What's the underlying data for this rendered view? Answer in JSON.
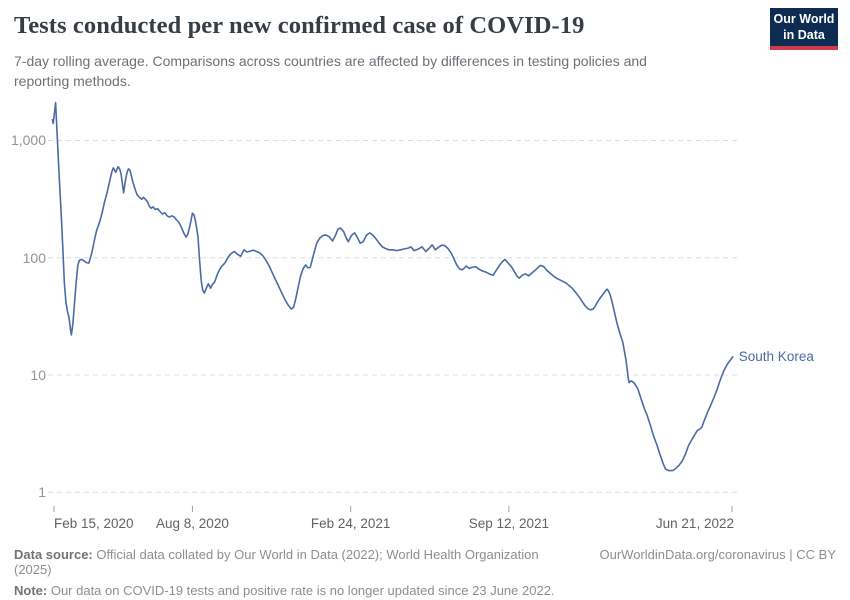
{
  "header": {
    "title": "Tests conducted per new confirmed case of COVID-19",
    "subtitle": "7-day rolling average. Comparisons across countries are affected by differences in testing policies and reporting methods.",
    "logo_line1": "Our World",
    "logo_line2": "in Data"
  },
  "colors": {
    "brand_navy": "#0e2c52",
    "brand_red": "#d13b4b",
    "series_blue": "#4a6ba3",
    "gridline": "#dbdddf",
    "tick": "#9ca1a4"
  },
  "chart_data": {
    "type": "line",
    "title": "Tests conducted per new confirmed case of COVID-19",
    "y_axis": {
      "scale": "log",
      "range": [
        1,
        2500
      ],
      "gridlines": "dashed",
      "ticks": [
        {
          "value": 1000,
          "label": "1,000"
        },
        {
          "value": 100,
          "label": "100"
        },
        {
          "value": 10,
          "label": "10"
        },
        {
          "value": 1,
          "label": "1"
        }
      ]
    },
    "x_axis": {
      "range": [
        "2020-02-13",
        "2022-06-23"
      ],
      "ticks": [
        {
          "date": "2020-02-15",
          "label": "Feb 15, 2020",
          "align": "left"
        },
        {
          "date": "2020-08-08",
          "label": "Aug 8, 2020",
          "align": "center"
        },
        {
          "date": "2021-02-24",
          "label": "Feb 24, 2021",
          "align": "center"
        },
        {
          "date": "2021-09-12",
          "label": "Sep 12, 2021",
          "align": "center"
        },
        {
          "date": "2022-06-21",
          "label": "Jun 21, 2022",
          "align": "right"
        }
      ]
    },
    "series": [
      {
        "name": "South Korea",
        "color": "#4a6ba3",
        "points": [
          [
            "2020-02-13",
            1500
          ],
          [
            "2020-02-14",
            1400
          ],
          [
            "2020-02-17",
            2100
          ],
          [
            "2020-02-20",
            800
          ],
          [
            "2020-02-22",
            440
          ],
          [
            "2020-02-24",
            245
          ],
          [
            "2020-02-26",
            128
          ],
          [
            "2020-02-28",
            62
          ],
          [
            "2020-03-01",
            42
          ],
          [
            "2020-03-03",
            35
          ],
          [
            "2020-03-05",
            31
          ],
          [
            "2020-03-07",
            24
          ],
          [
            "2020-03-08",
            22
          ],
          [
            "2020-03-10",
            28
          ],
          [
            "2020-03-12",
            42
          ],
          [
            "2020-03-14",
            62
          ],
          [
            "2020-03-16",
            85
          ],
          [
            "2020-03-18",
            95
          ],
          [
            "2020-03-21",
            97
          ],
          [
            "2020-03-24",
            94
          ],
          [
            "2020-03-27",
            91
          ],
          [
            "2020-03-30",
            90
          ],
          [
            "2020-04-01",
            100
          ],
          [
            "2020-04-03",
            112
          ],
          [
            "2020-04-06",
            140
          ],
          [
            "2020-04-09",
            172
          ],
          [
            "2020-04-13",
            205
          ],
          [
            "2020-04-16",
            245
          ],
          [
            "2020-04-19",
            300
          ],
          [
            "2020-04-22",
            357
          ],
          [
            "2020-04-25",
            440
          ],
          [
            "2020-04-28",
            540
          ],
          [
            "2020-04-30",
            584
          ],
          [
            "2020-05-03",
            535
          ],
          [
            "2020-05-06",
            598
          ],
          [
            "2020-05-08",
            570
          ],
          [
            "2020-05-10",
            510
          ],
          [
            "2020-05-13",
            358
          ],
          [
            "2020-05-15",
            443
          ],
          [
            "2020-05-17",
            525
          ],
          [
            "2020-05-19",
            572
          ],
          [
            "2020-05-21",
            560
          ],
          [
            "2020-05-23",
            495
          ],
          [
            "2020-05-25",
            437
          ],
          [
            "2020-05-28",
            375
          ],
          [
            "2020-05-30",
            345
          ],
          [
            "2020-06-02",
            327
          ],
          [
            "2020-06-05",
            315
          ],
          [
            "2020-06-07",
            327
          ],
          [
            "2020-06-09",
            318
          ],
          [
            "2020-06-12",
            300
          ],
          [
            "2020-06-15",
            272
          ],
          [
            "2020-06-17",
            264
          ],
          [
            "2020-06-19",
            272
          ],
          [
            "2020-06-22",
            258
          ],
          [
            "2020-06-25",
            262
          ],
          [
            "2020-06-28",
            248
          ],
          [
            "2020-07-01",
            236
          ],
          [
            "2020-07-04",
            242
          ],
          [
            "2020-07-07",
            228
          ],
          [
            "2020-07-10",
            222
          ],
          [
            "2020-07-13",
            228
          ],
          [
            "2020-07-16",
            222
          ],
          [
            "2020-07-19",
            210
          ],
          [
            "2020-07-22",
            200
          ],
          [
            "2020-07-25",
            182
          ],
          [
            "2020-07-28",
            163
          ],
          [
            "2020-07-31",
            150
          ],
          [
            "2020-08-02",
            158
          ],
          [
            "2020-08-05",
            190
          ],
          [
            "2020-08-08",
            240
          ],
          [
            "2020-08-10",
            232
          ],
          [
            "2020-08-12",
            203
          ],
          [
            "2020-08-15",
            151
          ],
          [
            "2020-08-17",
            95
          ],
          [
            "2020-08-19",
            64
          ],
          [
            "2020-08-21",
            53
          ],
          [
            "2020-08-23",
            50
          ],
          [
            "2020-08-26",
            56
          ],
          [
            "2020-08-28",
            60
          ],
          [
            "2020-08-31",
            55
          ],
          [
            "2020-09-02",
            59
          ],
          [
            "2020-09-05",
            62
          ],
          [
            "2020-09-09",
            74
          ],
          [
            "2020-09-13",
            83
          ],
          [
            "2020-09-18",
            90
          ],
          [
            "2020-09-22",
            101
          ],
          [
            "2020-09-26",
            109
          ],
          [
            "2020-09-30",
            113
          ],
          [
            "2020-10-04",
            107
          ],
          [
            "2020-10-08",
            103
          ],
          [
            "2020-10-12",
            117
          ],
          [
            "2020-10-16",
            112
          ],
          [
            "2020-10-20",
            114
          ],
          [
            "2020-10-24",
            116
          ],
          [
            "2020-10-28",
            113
          ],
          [
            "2020-11-01",
            110
          ],
          [
            "2020-11-05",
            104
          ],
          [
            "2020-11-09",
            95
          ],
          [
            "2020-11-13",
            85
          ],
          [
            "2020-11-17",
            74
          ],
          [
            "2020-11-21",
            65
          ],
          [
            "2020-11-25",
            57
          ],
          [
            "2020-11-29",
            50
          ],
          [
            "2020-12-03",
            44
          ],
          [
            "2020-12-07",
            39.5
          ],
          [
            "2020-12-11",
            36.5
          ],
          [
            "2020-12-14",
            38
          ],
          [
            "2020-12-17",
            46
          ],
          [
            "2020-12-20",
            58
          ],
          [
            "2020-12-23",
            71
          ],
          [
            "2020-12-26",
            81
          ],
          [
            "2020-12-29",
            87
          ],
          [
            "2021-01-01",
            82
          ],
          [
            "2021-01-04",
            83
          ],
          [
            "2021-01-08",
            106
          ],
          [
            "2021-01-12",
            133
          ],
          [
            "2021-01-16",
            147
          ],
          [
            "2021-01-20",
            155
          ],
          [
            "2021-01-24",
            156
          ],
          [
            "2021-01-28",
            151
          ],
          [
            "2021-02-01",
            139
          ],
          [
            "2021-02-05",
            156
          ],
          [
            "2021-02-08",
            176
          ],
          [
            "2021-02-11",
            179
          ],
          [
            "2021-02-15",
            167
          ],
          [
            "2021-02-18",
            150
          ],
          [
            "2021-02-21",
            137
          ],
          [
            "2021-02-25",
            155
          ],
          [
            "2021-03-01",
            163
          ],
          [
            "2021-03-04",
            151
          ],
          [
            "2021-03-08",
            133
          ],
          [
            "2021-03-12",
            137
          ],
          [
            "2021-03-16",
            156
          ],
          [
            "2021-03-20",
            163
          ],
          [
            "2021-03-24",
            156
          ],
          [
            "2021-03-28",
            145
          ],
          [
            "2021-04-01",
            133
          ],
          [
            "2021-04-05",
            124
          ],
          [
            "2021-04-09",
            120
          ],
          [
            "2021-04-13",
            117
          ],
          [
            "2021-04-18",
            117
          ],
          [
            "2021-04-23",
            115
          ],
          [
            "2021-04-28",
            117
          ],
          [
            "2021-05-03",
            119
          ],
          [
            "2021-05-08",
            121
          ],
          [
            "2021-05-11",
            124
          ],
          [
            "2021-05-15",
            115
          ],
          [
            "2021-05-20",
            118
          ],
          [
            "2021-05-25",
            124
          ],
          [
            "2021-05-30",
            113
          ],
          [
            "2021-06-03",
            120
          ],
          [
            "2021-06-07",
            129
          ],
          [
            "2021-06-11",
            117
          ],
          [
            "2021-06-15",
            123
          ],
          [
            "2021-06-19",
            128
          ],
          [
            "2021-06-23",
            127
          ],
          [
            "2021-06-27",
            120
          ],
          [
            "2021-07-01",
            110
          ],
          [
            "2021-07-04",
            100
          ],
          [
            "2021-07-08",
            87
          ],
          [
            "2021-07-12",
            80
          ],
          [
            "2021-07-15",
            79
          ],
          [
            "2021-07-18",
            82
          ],
          [
            "2021-07-20",
            85
          ],
          [
            "2021-07-24",
            81
          ],
          [
            "2021-07-28",
            83
          ],
          [
            "2021-08-01",
            84
          ],
          [
            "2021-08-05",
            80
          ],
          [
            "2021-08-10",
            77
          ],
          [
            "2021-08-15",
            75
          ],
          [
            "2021-08-20",
            72
          ],
          [
            "2021-08-23",
            71
          ],
          [
            "2021-08-27",
            78
          ],
          [
            "2021-08-31",
            86
          ],
          [
            "2021-09-04",
            93
          ],
          [
            "2021-09-07",
            97
          ],
          [
            "2021-09-11",
            90
          ],
          [
            "2021-09-15",
            84
          ],
          [
            "2021-09-19",
            76
          ],
          [
            "2021-09-22",
            70
          ],
          [
            "2021-09-25",
            67
          ],
          [
            "2021-09-29",
            71
          ],
          [
            "2021-10-03",
            73
          ],
          [
            "2021-10-07",
            70
          ],
          [
            "2021-10-11",
            74
          ],
          [
            "2021-10-15",
            78
          ],
          [
            "2021-10-19",
            83
          ],
          [
            "2021-10-22",
            86
          ],
          [
            "2021-10-26",
            84
          ],
          [
            "2021-10-30",
            78
          ],
          [
            "2021-11-03",
            74
          ],
          [
            "2021-11-07",
            70
          ],
          [
            "2021-11-11",
            67
          ],
          [
            "2021-11-15",
            65
          ],
          [
            "2021-11-19",
            63
          ],
          [
            "2021-11-23",
            61
          ],
          [
            "2021-11-27",
            58
          ],
          [
            "2021-12-01",
            55
          ],
          [
            "2021-12-05",
            51
          ],
          [
            "2021-12-09",
            47
          ],
          [
            "2021-12-12",
            44
          ],
          [
            "2021-12-15",
            41
          ],
          [
            "2021-12-18",
            38.5
          ],
          [
            "2021-12-21",
            36.8
          ],
          [
            "2021-12-24",
            36
          ],
          [
            "2021-12-27",
            36.4
          ],
          [
            "2021-12-30",
            38.5
          ],
          [
            "2022-01-02",
            42
          ],
          [
            "2022-01-05",
            45
          ],
          [
            "2022-01-08",
            48
          ],
          [
            "2022-01-11",
            51
          ],
          [
            "2022-01-14",
            54
          ],
          [
            "2022-01-16",
            52
          ],
          [
            "2022-01-18",
            48
          ],
          [
            "2022-01-20",
            43
          ],
          [
            "2022-01-22",
            38
          ],
          [
            "2022-01-24",
            33
          ],
          [
            "2022-01-27",
            27
          ],
          [
            "2022-01-30",
            23
          ],
          [
            "2022-02-01",
            21
          ],
          [
            "2022-02-03",
            19
          ],
          [
            "2022-02-05",
            16
          ],
          [
            "2022-02-07",
            13.4
          ],
          [
            "2022-02-09",
            10.5
          ],
          [
            "2022-02-10",
            9.2
          ],
          [
            "2022-02-11",
            8.6
          ],
          [
            "2022-02-13",
            8.9
          ],
          [
            "2022-02-15",
            8.8
          ],
          [
            "2022-02-17",
            8.6
          ],
          [
            "2022-02-19",
            8.2
          ],
          [
            "2022-02-22",
            7.6
          ],
          [
            "2022-02-26",
            6.3
          ],
          [
            "2022-03-02",
            5.2
          ],
          [
            "2022-03-06",
            4.5
          ],
          [
            "2022-03-10",
            3.7
          ],
          [
            "2022-03-14",
            3.0
          ],
          [
            "2022-03-18",
            2.55
          ],
          [
            "2022-03-22",
            2.1
          ],
          [
            "2022-03-26",
            1.75
          ],
          [
            "2022-03-29",
            1.58
          ],
          [
            "2022-04-02",
            1.53
          ],
          [
            "2022-04-07",
            1.53
          ],
          [
            "2022-04-11",
            1.6
          ],
          [
            "2022-04-15",
            1.7
          ],
          [
            "2022-04-19",
            1.85
          ],
          [
            "2022-04-23",
            2.1
          ],
          [
            "2022-04-27",
            2.5
          ],
          [
            "2022-05-01",
            2.8
          ],
          [
            "2022-05-05",
            3.1
          ],
          [
            "2022-05-08",
            3.35
          ],
          [
            "2022-05-11",
            3.45
          ],
          [
            "2022-05-14",
            3.6
          ],
          [
            "2022-05-17",
            4.1
          ],
          [
            "2022-05-21",
            4.8
          ],
          [
            "2022-05-25",
            5.5
          ],
          [
            "2022-05-29",
            6.4
          ],
          [
            "2022-06-02",
            7.5
          ],
          [
            "2022-06-05",
            8.6
          ],
          [
            "2022-06-08",
            9.8
          ],
          [
            "2022-06-11",
            11
          ],
          [
            "2022-06-14",
            12
          ],
          [
            "2022-06-17",
            12.9
          ],
          [
            "2022-06-20",
            13.7
          ],
          [
            "2022-06-22",
            14.3
          ]
        ]
      }
    ]
  },
  "footer": {
    "data_source_label": "Data source:",
    "data_source_text": " Official data collated by Our World in Data (2022); World Health Organization (2025)",
    "link_text": "OurWorldinData.org/coronavirus | CC BY",
    "note_label": "Note:",
    "note_text": " Our data on COVID-19 tests and positive rate is no longer updated since 23 June 2022."
  }
}
